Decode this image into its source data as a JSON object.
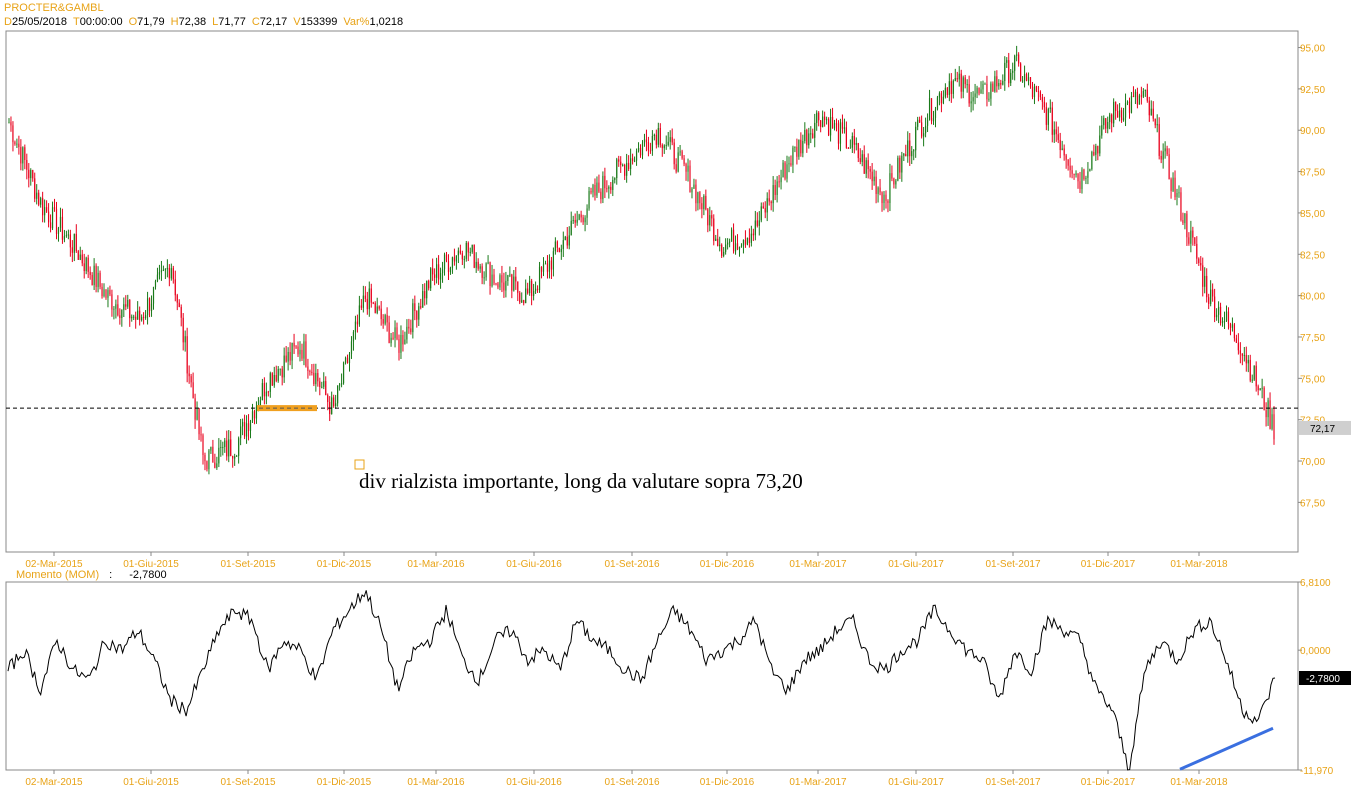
{
  "header": {
    "symbol": "PROCTER&GAMBL",
    "fields": [
      {
        "k": "D",
        "v": "25/05/2018"
      },
      {
        "k": "T",
        "v": "00:00:00"
      },
      {
        "k": "O",
        "v": "71,79"
      },
      {
        "k": "H",
        "v": "72,38"
      },
      {
        "k": "L",
        "v": "71,77"
      },
      {
        "k": "C",
        "v": "72,17"
      },
      {
        "k": "V",
        "v": "153399"
      },
      {
        "k": "Var%",
        "v": "1,0218"
      }
    ]
  },
  "indicator_header": {
    "name": "Momento (MOM)",
    "value": "-2,7800"
  },
  "colors": {
    "up": "#1a7a1a",
    "down": "#e8001c",
    "axis_text": "#e8a317",
    "trendline": "#3a6fe0",
    "highlight": "#f0a020"
  },
  "chart_data": [
    {
      "type": "candlestick",
      "title": "PROCTER&GAMBL",
      "ylim": [
        64.5,
        96
      ],
      "y_ticks": [
        "67,50",
        "70,00",
        "72,50",
        "75,00",
        "77,50",
        "80,00",
        "82,50",
        "85,00",
        "87,50",
        "90,00",
        "92,50",
        "95,00"
      ],
      "y_tick_values": [
        67.5,
        70,
        72.5,
        75,
        77.5,
        80,
        82.5,
        85,
        87.5,
        90,
        92.5,
        95
      ],
      "x_ticks": [
        "02-Mar-2015",
        "01-Giu-2015",
        "01-Set-2015",
        "01-Dic-2015",
        "01-Mar-2016",
        "01-Giu-2016",
        "01-Set-2016",
        "01-Dic-2016",
        "01-Mar-2017",
        "01-Giu-2017",
        "01-Set-2017",
        "01-Dic-2017",
        "01-Mar-2018"
      ],
      "last_price_label": "72,17",
      "horizontal_line": 73.2,
      "grid": false,
      "annotation": "div rialzista importante, long da valutare sopra 73,20",
      "x_dates": [
        "2015-02",
        "2015-03",
        "2015-05",
        "2015-06",
        "2015-07",
        "2015-08",
        "2015-08-24",
        "2015-09",
        "2015-10",
        "2015-11",
        "2015-12",
        "2016-01",
        "2016-02",
        "2016-03",
        "2016-04",
        "2016-05",
        "2016-06",
        "2016-07",
        "2016-08",
        "2016-09",
        "2016-10",
        "2016-11",
        "2016-12",
        "2017-01",
        "2017-02",
        "2017-03",
        "2017-04",
        "2017-05",
        "2017-06",
        "2017-07",
        "2017-08",
        "2017-09",
        "2017-10",
        "2017-11",
        "2017-12",
        "2018-01",
        "2018-02",
        "2018-03",
        "2018-04",
        "2018-05"
      ],
      "close": [
        90.5,
        85.5,
        83,
        80,
        78.5,
        82,
        70,
        71,
        75,
        77,
        73,
        80,
        77,
        81,
        83,
        81,
        80,
        83,
        86,
        88,
        90,
        87,
        83,
        84,
        88,
        91,
        89,
        86,
        90,
        93,
        92,
        94,
        91,
        87,
        91,
        92,
        86,
        80,
        77,
        72
      ]
    },
    {
      "type": "line",
      "title": "Momento (MOM)",
      "ylim": [
        -11.97,
        6.81
      ],
      "y_ticks": [
        "6,8100",
        "0,0000",
        "-11,970"
      ],
      "y_tick_values": [
        6.81,
        0,
        -11.97
      ],
      "x_ticks": [
        "02-Mar-2015",
        "01-Giu-2015",
        "01-Set-2015",
        "01-Dic-2015",
        "01-Mar-2016",
        "01-Giu-2016",
        "01-Set-2016",
        "01-Dic-2016",
        "01-Mar-2017",
        "01-Giu-2017",
        "01-Set-2017",
        "01-Dic-2017",
        "01-Mar-2018"
      ],
      "last_value_label": "-2,7800",
      "values": [
        -2,
        0,
        -4,
        1,
        -2,
        -3,
        1,
        0,
        2,
        -1,
        -5,
        -6,
        -2,
        2,
        4,
        3,
        -2,
        1,
        0,
        -3,
        2,
        4,
        6,
        2,
        -4,
        0,
        1,
        4,
        -1,
        -3,
        1,
        2,
        -1,
        0,
        -2,
        3,
        1,
        0,
        -2,
        -3,
        1,
        4,
        2,
        -1,
        0,
        1,
        3,
        -2,
        -4,
        -1,
        0,
        2,
        3,
        -1,
        -2,
        0,
        1,
        4,
        2,
        0,
        -1,
        -5,
        0,
        -2,
        3,
        2,
        1,
        -4,
        -6,
        -11.9,
        -2,
        1,
        -1,
        2,
        3,
        -1,
        -6,
        -7,
        -2.78
      ],
      "trendline": {
        "from_value": -11.9,
        "to_value": -7.8
      }
    }
  ]
}
